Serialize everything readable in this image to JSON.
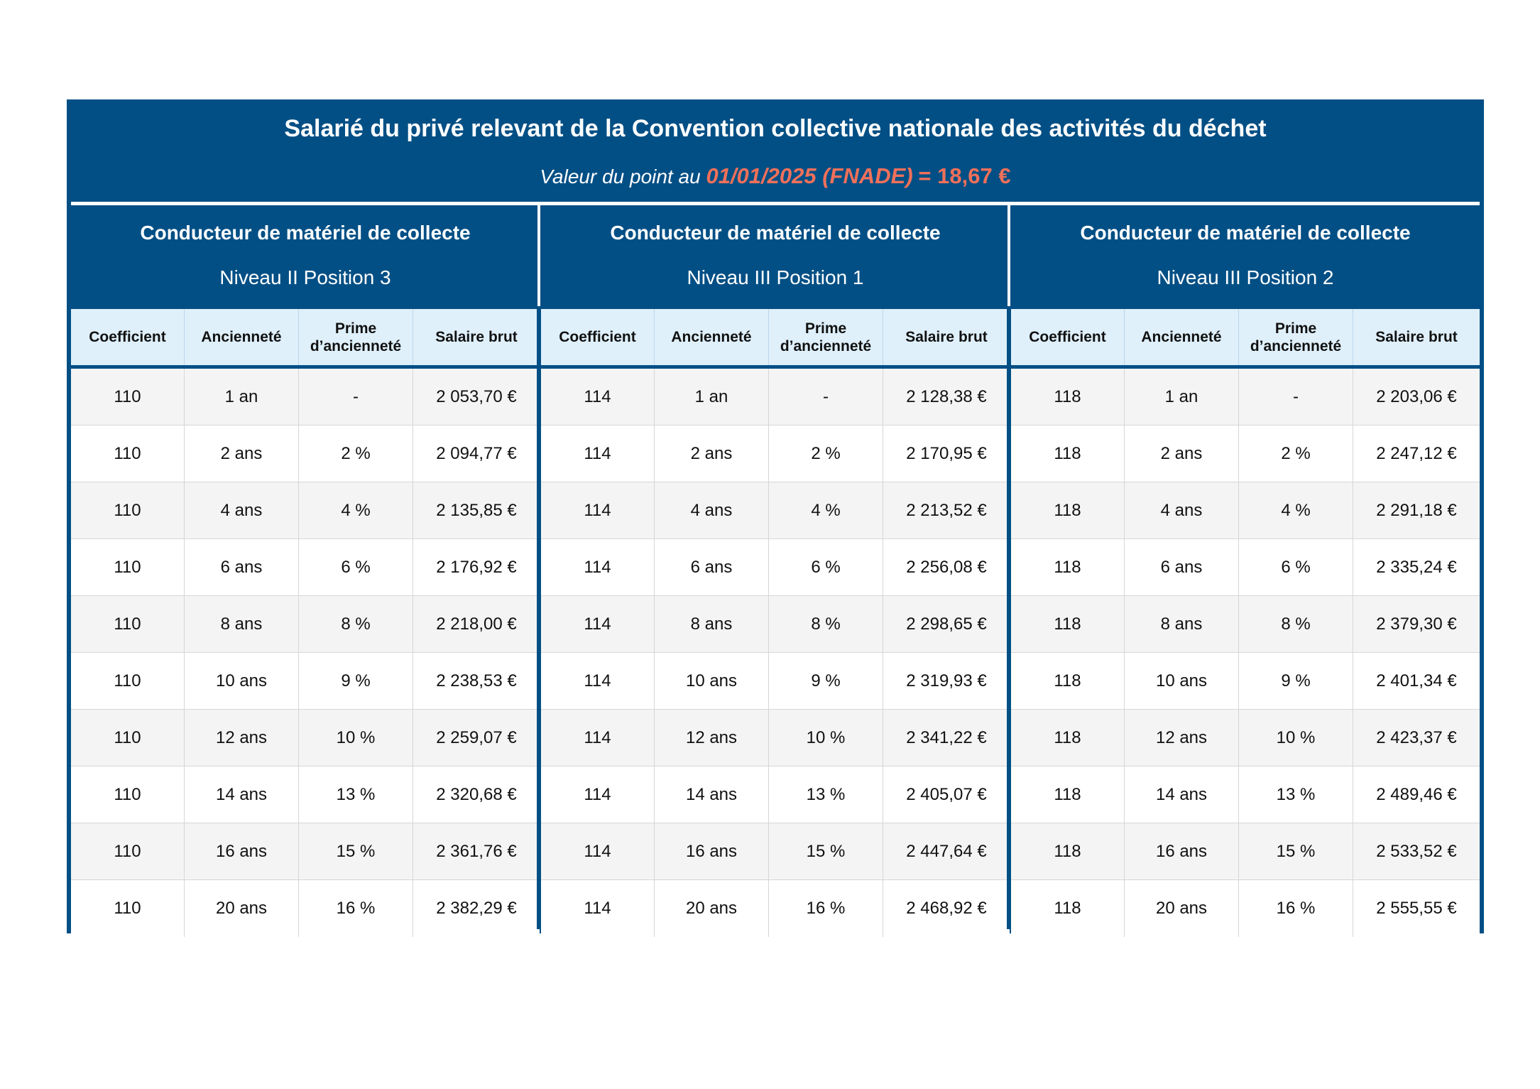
{
  "header": {
    "title": "Salarié du privé relevant de la Convention collective nationale des activités du déchet",
    "subtitle_prefix": "Valeur du point au",
    "subtitle_date": "01/01/2025 (FNADE)",
    "subtitle_value": "= 18,67 €"
  },
  "columns": [
    "Coefficient",
    "Ancienneté",
    "Prime d’ancienneté",
    "Salaire brut"
  ],
  "groups": [
    {
      "title": "Conducteur de matériel de collecte",
      "level": "Niveau II Position 3",
      "rows": [
        [
          "110",
          "1 an",
          "-",
          "2 053,70 €"
        ],
        [
          "110",
          "2 ans",
          "2 %",
          "2 094,77 €"
        ],
        [
          "110",
          "4 ans",
          "4 %",
          "2 135,85 €"
        ],
        [
          "110",
          "6 ans",
          "6 %",
          "2 176,92 €"
        ],
        [
          "110",
          "8 ans",
          "8 %",
          "2 218,00 €"
        ],
        [
          "110",
          "10 ans",
          "9 %",
          "2 238,53 €"
        ],
        [
          "110",
          "12 ans",
          "10 %",
          "2 259,07 €"
        ],
        [
          "110",
          "14 ans",
          "13 %",
          "2 320,68 €"
        ],
        [
          "110",
          "16 ans",
          "15 %",
          "2 361,76 €"
        ],
        [
          "110",
          "20 ans",
          "16 %",
          "2 382,29 €"
        ]
      ]
    },
    {
      "title": "Conducteur de matériel de collecte",
      "level": "Niveau III Position 1",
      "rows": [
        [
          "114",
          "1 an",
          "-",
          "2 128,38 €"
        ],
        [
          "114",
          "2 ans",
          "2 %",
          "2 170,95 €"
        ],
        [
          "114",
          "4 ans",
          "4 %",
          "2 213,52 €"
        ],
        [
          "114",
          "6 ans",
          "6 %",
          "2 256,08 €"
        ],
        [
          "114",
          "8 ans",
          "8 %",
          "2 298,65 €"
        ],
        [
          "114",
          "10 ans",
          "9 %",
          "2 319,93 €"
        ],
        [
          "114",
          "12 ans",
          "10 %",
          "2 341,22 €"
        ],
        [
          "114",
          "14 ans",
          "13 %",
          "2 405,07 €"
        ],
        [
          "114",
          "16 ans",
          "15 %",
          "2 447,64 €"
        ],
        [
          "114",
          "20 ans",
          "16 %",
          "2 468,92 €"
        ]
      ]
    },
    {
      "title": "Conducteur de matériel de collecte",
      "level": "Niveau III Position 2",
      "rows": [
        [
          "118",
          "1 an",
          "-",
          "2 203,06 €"
        ],
        [
          "118",
          "2 ans",
          "2 %",
          "2 247,12 €"
        ],
        [
          "118",
          "4 ans",
          "4 %",
          "2 291,18 €"
        ],
        [
          "118",
          "6 ans",
          "6 %",
          "2 335,24 €"
        ],
        [
          "118",
          "8 ans",
          "8 %",
          "2 379,30 €"
        ],
        [
          "118",
          "10 ans",
          "9 %",
          "2 401,34 €"
        ],
        [
          "118",
          "12 ans",
          "10 %",
          "2 423,37 €"
        ],
        [
          "118",
          "14 ans",
          "13 %",
          "2 489,46 €"
        ],
        [
          "118",
          "16 ans",
          "15 %",
          "2 533,52 €"
        ],
        [
          "118",
          "20 ans",
          "16 %",
          "2 555,55 €"
        ]
      ]
    }
  ],
  "colors": {
    "navy": "#024f85",
    "accent": "#f0705a",
    "header_bg": "#dff0fb"
  }
}
